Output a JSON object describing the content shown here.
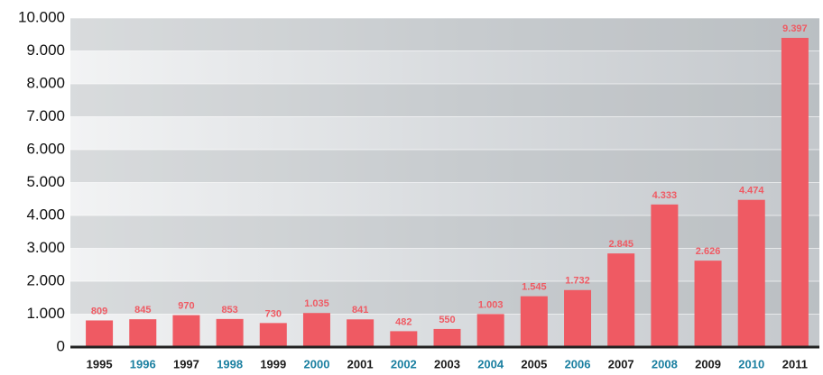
{
  "chart_data": {
    "type": "bar",
    "categories": [
      "1995",
      "1996",
      "1997",
      "1998",
      "1999",
      "2000",
      "2001",
      "2002",
      "2003",
      "2004",
      "2005",
      "2006",
      "2007",
      "2008",
      "2009",
      "2010",
      "2011"
    ],
    "category_label_colors": [
      "#1a1a1a",
      "#1a7fa0",
      "#1a1a1a",
      "#1a7fa0",
      "#1a1a1a",
      "#1a7fa0",
      "#1a1a1a",
      "#1a7fa0",
      "#1a1a1a",
      "#1a7fa0",
      "#1a1a1a",
      "#1a7fa0",
      "#1a1a1a",
      "#1a7fa0",
      "#1a1a1a",
      "#1a7fa0",
      "#1a1a1a"
    ],
    "values": [
      809,
      845,
      970,
      853,
      730,
      1035,
      841,
      482,
      550,
      1003,
      1545,
      1732,
      2845,
      4333,
      2626,
      4474,
      9397
    ],
    "value_labels": [
      "809",
      "845",
      "970",
      "853",
      "730",
      "1.035",
      "841",
      "482",
      "550",
      "1.003",
      "1.545",
      "1.732",
      "2.845",
      "4.333",
      "2.626",
      "4.474",
      "9.397"
    ],
    "color": "#ef5a63",
    "ylim": [
      0,
      10000
    ],
    "yticks": [
      0,
      {
        "value": 1000,
        "label": "1.000"
      },
      {
        "value": 2000,
        "label": "2.000"
      },
      {
        "value": 3000,
        "label": "3.000"
      },
      {
        "value": 4000,
        "label": "4.000"
      },
      {
        "value": 5000,
        "label": "5.000"
      },
      {
        "value": 6000,
        "label": "6.000"
      },
      {
        "value": 7000,
        "label": "7.000"
      },
      {
        "value": 8000,
        "label": "8.000"
      },
      {
        "value": 9000,
        "label": "9.000"
      },
      {
        "value": 10000,
        "label": "10.000"
      }
    ],
    "grid": true
  }
}
